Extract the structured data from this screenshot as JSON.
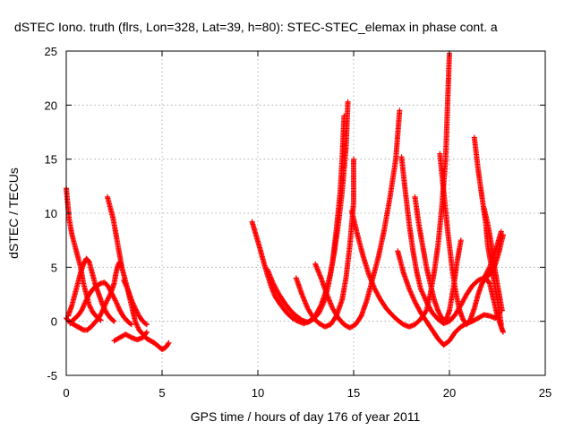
{
  "chart_data": {
    "type": "scatter",
    "title": "dSTEC Iono. truth (flrs, Lon=328, Lat=39, h=80): STEC-STEC_elemax in phase cont. a",
    "xlabel": "GPS time / hours of day 176 of year 2011",
    "ylabel": "dSTEC  / TECUs",
    "xlim": [
      0,
      25
    ],
    "ylim": [
      -5,
      25
    ],
    "xticks": [
      0,
      5,
      10,
      15,
      20,
      25
    ],
    "yticks": [
      -5,
      0,
      5,
      10,
      15,
      20,
      25
    ],
    "grid": true,
    "marker": "+",
    "color": "#ff0000",
    "series": [
      {
        "points": [
          [
            0.0,
            12.3
          ],
          [
            0.15,
            9.5
          ],
          [
            0.3,
            8.0
          ],
          [
            0.45,
            7.0
          ],
          [
            0.6,
            6.0
          ],
          [
            0.75,
            5.0
          ],
          [
            0.9,
            3.5
          ],
          [
            1.05,
            2.5
          ],
          [
            1.2,
            1.5
          ],
          [
            1.4,
            0.8
          ],
          [
            1.6,
            0.4
          ],
          [
            1.8,
            0.1
          ]
        ]
      },
      {
        "points": [
          [
            0.0,
            0.3
          ],
          [
            0.15,
            0.0
          ],
          [
            0.3,
            -0.2
          ],
          [
            0.5,
            -0.4
          ],
          [
            0.7,
            -0.6
          ],
          [
            0.9,
            -0.8
          ],
          [
            1.1,
            -0.8
          ],
          [
            1.3,
            -0.5
          ],
          [
            1.5,
            -0.1
          ],
          [
            1.7,
            0.3
          ],
          [
            1.9,
            1.0
          ],
          [
            2.1,
            1.8
          ],
          [
            2.3,
            2.5
          ],
          [
            2.5,
            3.5
          ],
          [
            2.6,
            4.5
          ],
          [
            2.7,
            5.2
          ],
          [
            2.8,
            5.5
          ],
          [
            2.9,
            5.0
          ]
        ]
      },
      {
        "points": [
          [
            0.1,
            0.5
          ],
          [
            0.3,
            1.5
          ],
          [
            0.45,
            2.5
          ],
          [
            0.6,
            3.5
          ],
          [
            0.75,
            4.5
          ],
          [
            0.9,
            5.3
          ],
          [
            1.05,
            5.8
          ],
          [
            1.2,
            5.5
          ],
          [
            1.35,
            4.5
          ],
          [
            1.5,
            3.5
          ],
          [
            1.7,
            2.5
          ],
          [
            1.9,
            1.5
          ],
          [
            2.1,
            0.8
          ],
          [
            2.3,
            0.3
          ],
          [
            2.5,
            0.0
          ]
        ]
      },
      {
        "points": [
          [
            0.2,
            -0.2
          ],
          [
            0.4,
            0.2
          ],
          [
            0.6,
            0.5
          ],
          [
            0.8,
            1.0
          ],
          [
            1.0,
            1.8
          ],
          [
            1.2,
            2.5
          ],
          [
            1.4,
            3.0
          ],
          [
            1.6,
            3.3
          ],
          [
            1.8,
            3.5
          ],
          [
            2.0,
            3.6
          ],
          [
            2.2,
            3.2
          ],
          [
            2.4,
            2.5
          ],
          [
            2.6,
            1.8
          ],
          [
            2.8,
            1.0
          ],
          [
            3.0,
            0.4
          ],
          [
            3.2,
            0.0
          ],
          [
            3.4,
            -0.3
          ]
        ]
      },
      {
        "points": [
          [
            2.15,
            11.5
          ],
          [
            2.3,
            10.5
          ],
          [
            2.45,
            9.5
          ],
          [
            2.6,
            8.0
          ],
          [
            2.75,
            6.5
          ],
          [
            2.9,
            5.0
          ],
          [
            3.05,
            4.0
          ],
          [
            3.2,
            3.0
          ],
          [
            3.4,
            2.0
          ],
          [
            3.6,
            1.2
          ],
          [
            3.8,
            0.5
          ],
          [
            4.0,
            0.0
          ],
          [
            4.2,
            -0.3
          ]
        ]
      },
      {
        "points": [
          [
            3.0,
            3.8
          ],
          [
            3.2,
            3.0
          ],
          [
            3.4,
            1.5
          ],
          [
            3.6,
            0.0
          ],
          [
            3.8,
            -0.8
          ],
          [
            4.0,
            -1.2
          ],
          [
            4.2,
            -1.6
          ],
          [
            4.4,
            -1.8
          ],
          [
            4.6,
            -2.0
          ],
          [
            4.8,
            -2.3
          ],
          [
            5.0,
            -2.6
          ],
          [
            5.2,
            -2.4
          ],
          [
            5.35,
            -2.0
          ]
        ]
      },
      {
        "points": [
          [
            2.5,
            -1.8
          ],
          [
            2.8,
            -1.5
          ],
          [
            3.1,
            -1.2
          ],
          [
            3.4,
            -1.5
          ],
          [
            3.7,
            -1.7
          ],
          [
            4.0,
            -1.5
          ],
          [
            4.2,
            -1.0
          ]
        ]
      },
      {
        "points": [
          [
            9.7,
            9.2
          ],
          [
            9.9,
            8.0
          ],
          [
            10.1,
            6.8
          ],
          [
            10.3,
            5.5
          ],
          [
            10.5,
            4.3
          ],
          [
            10.7,
            3.2
          ],
          [
            10.9,
            2.3
          ],
          [
            11.2,
            1.5
          ],
          [
            11.5,
            0.8
          ],
          [
            11.8,
            0.3
          ],
          [
            12.1,
            0.0
          ],
          [
            12.4,
            -0.2
          ],
          [
            12.7,
            0.0
          ],
          [
            13.0,
            0.5
          ],
          [
            13.3,
            1.5
          ],
          [
            13.6,
            3.0
          ],
          [
            13.8,
            4.5
          ],
          [
            14.0,
            6.5
          ],
          [
            14.2,
            9.0
          ],
          [
            14.4,
            12.0
          ],
          [
            14.6,
            16.0
          ],
          [
            14.7,
            20.3
          ]
        ]
      },
      {
        "points": [
          [
            10.5,
            4.8
          ],
          [
            10.8,
            3.5
          ],
          [
            11.1,
            2.5
          ],
          [
            11.4,
            1.7
          ],
          [
            11.7,
            1.0
          ],
          [
            12.0,
            0.5
          ],
          [
            12.3,
            0.1
          ],
          [
            12.6,
            -0.1
          ],
          [
            12.9,
            0.2
          ],
          [
            13.2,
            0.8
          ],
          [
            13.5,
            2.0
          ],
          [
            13.7,
            3.5
          ],
          [
            13.9,
            5.5
          ],
          [
            14.1,
            8.5
          ],
          [
            14.3,
            12.0
          ],
          [
            14.4,
            15.0
          ],
          [
            14.5,
            19.0
          ]
        ]
      },
      {
        "points": [
          [
            12.0,
            4.0
          ],
          [
            12.3,
            2.5
          ],
          [
            12.6,
            1.2
          ],
          [
            12.9,
            0.3
          ],
          [
            13.2,
            -0.2
          ],
          [
            13.5,
            -0.5
          ],
          [
            13.8,
            -0.3
          ],
          [
            14.1,
            0.5
          ],
          [
            14.4,
            2.0
          ],
          [
            14.6,
            4.0
          ],
          [
            14.8,
            7.0
          ],
          [
            15.0,
            11.0
          ],
          [
            15.0,
            15.0
          ]
        ]
      },
      {
        "points": [
          [
            13.0,
            5.3
          ],
          [
            13.3,
            4.0
          ],
          [
            13.6,
            2.5
          ],
          [
            13.9,
            1.2
          ],
          [
            14.2,
            0.3
          ],
          [
            14.5,
            -0.3
          ],
          [
            14.8,
            -0.6
          ],
          [
            15.1,
            -0.3
          ],
          [
            15.4,
            0.5
          ],
          [
            15.7,
            2.0
          ],
          [
            16.0,
            4.0
          ],
          [
            16.3,
            6.0
          ],
          [
            16.6,
            8.5
          ],
          [
            16.9,
            11.5
          ],
          [
            17.2,
            15.0
          ],
          [
            17.4,
            19.5
          ]
        ]
      },
      {
        "points": [
          [
            14.9,
            10.2
          ],
          [
            15.2,
            8.0
          ],
          [
            15.5,
            6.0
          ],
          [
            15.8,
            4.3
          ],
          [
            16.1,
            3.0
          ],
          [
            16.4,
            2.0
          ],
          [
            16.7,
            1.2
          ],
          [
            17.0,
            0.6
          ],
          [
            17.3,
            0.1
          ],
          [
            17.6,
            -0.3
          ],
          [
            17.9,
            -0.5
          ],
          [
            18.2,
            -0.3
          ],
          [
            18.5,
            0.2
          ],
          [
            18.8,
            1.0
          ],
          [
            19.0,
            2.5
          ],
          [
            19.2,
            4.5
          ],
          [
            19.4,
            7.0
          ],
          [
            19.6,
            10.5
          ],
          [
            19.8,
            15.0
          ],
          [
            19.9,
            20.0
          ],
          [
            20.0,
            24.8
          ]
        ]
      },
      {
        "points": [
          [
            17.3,
            6.5
          ],
          [
            17.6,
            4.5
          ],
          [
            17.9,
            3.0
          ],
          [
            18.2,
            1.8
          ],
          [
            18.5,
            0.8
          ],
          [
            18.8,
            0.0
          ],
          [
            19.1,
            -0.8
          ],
          [
            19.4,
            -1.6
          ],
          [
            19.7,
            -2.2
          ],
          [
            20.0,
            -1.8
          ],
          [
            20.3,
            -1.0
          ],
          [
            20.6,
            -0.5
          ],
          [
            20.9,
            -0.2
          ],
          [
            21.2,
            0.0
          ],
          [
            21.5,
            0.3
          ],
          [
            21.8,
            0.6
          ],
          [
            22.1,
            0.5
          ],
          [
            22.4,
            0.3
          ],
          [
            22.6,
            0.8
          ]
        ]
      },
      {
        "points": [
          [
            17.5,
            15.2
          ],
          [
            17.7,
            12.0
          ],
          [
            17.9,
            9.0
          ],
          [
            18.1,
            6.5
          ],
          [
            18.3,
            4.5
          ],
          [
            18.5,
            3.0
          ],
          [
            18.8,
            1.8
          ],
          [
            19.1,
            0.8
          ],
          [
            19.4,
            0.2
          ],
          [
            19.7,
            -0.2
          ],
          [
            20.0,
            0.0
          ],
          [
            20.3,
            0.6
          ],
          [
            20.6,
            1.5
          ],
          [
            20.9,
            2.5
          ],
          [
            21.2,
            3.3
          ],
          [
            21.5,
            3.8
          ],
          [
            21.8,
            4.0
          ],
          [
            22.1,
            5.0
          ],
          [
            22.4,
            6.5
          ],
          [
            22.7,
            8.3
          ]
        ]
      },
      {
        "points": [
          [
            18.2,
            11.5
          ],
          [
            18.4,
            9.0
          ],
          [
            18.6,
            7.0
          ],
          [
            18.8,
            5.0
          ],
          [
            19.0,
            3.5
          ],
          [
            19.2,
            2.0
          ],
          [
            19.4,
            1.0
          ],
          [
            19.6,
            0.3
          ],
          [
            19.8,
            0.0
          ],
          [
            20.0,
            1.0
          ],
          [
            20.2,
            3.0
          ],
          [
            20.4,
            5.5
          ],
          [
            20.6,
            7.5
          ]
        ]
      },
      {
        "points": [
          [
            19.5,
            15.5
          ],
          [
            19.7,
            12.0
          ],
          [
            19.9,
            8.5
          ],
          [
            20.1,
            5.5
          ],
          [
            20.3,
            3.0
          ],
          [
            20.5,
            1.2
          ],
          [
            20.7,
            0.2
          ],
          [
            20.9,
            -0.3
          ],
          [
            21.1,
            0.2
          ],
          [
            21.3,
            1.2
          ],
          [
            21.5,
            2.5
          ],
          [
            21.7,
            3.5
          ],
          [
            21.9,
            4.0
          ],
          [
            22.1,
            3.5
          ],
          [
            22.3,
            2.0
          ],
          [
            22.5,
            0.5
          ],
          [
            22.7,
            -0.5
          ],
          [
            22.8,
            -1.0
          ]
        ]
      },
      {
        "points": [
          [
            21.3,
            17.0
          ],
          [
            21.5,
            14.0
          ],
          [
            21.7,
            11.5
          ],
          [
            21.9,
            9.0
          ],
          [
            22.0,
            7.0
          ],
          [
            22.2,
            5.0
          ],
          [
            22.4,
            3.0
          ],
          [
            22.6,
            1.0
          ],
          [
            22.7,
            -0.3
          ]
        ]
      },
      {
        "points": [
          [
            21.8,
            10.5
          ],
          [
            22.0,
            9.0
          ],
          [
            22.2,
            7.0
          ],
          [
            22.35,
            5.0
          ],
          [
            22.5,
            3.5
          ],
          [
            22.65,
            2.0
          ],
          [
            22.75,
            1.0
          ]
        ]
      },
      {
        "points": [
          [
            21.8,
            3.8
          ],
          [
            22.0,
            4.2
          ],
          [
            22.2,
            4.5
          ],
          [
            22.4,
            5.3
          ],
          [
            22.6,
            6.5
          ],
          [
            22.8,
            8.0
          ]
        ]
      }
    ]
  }
}
